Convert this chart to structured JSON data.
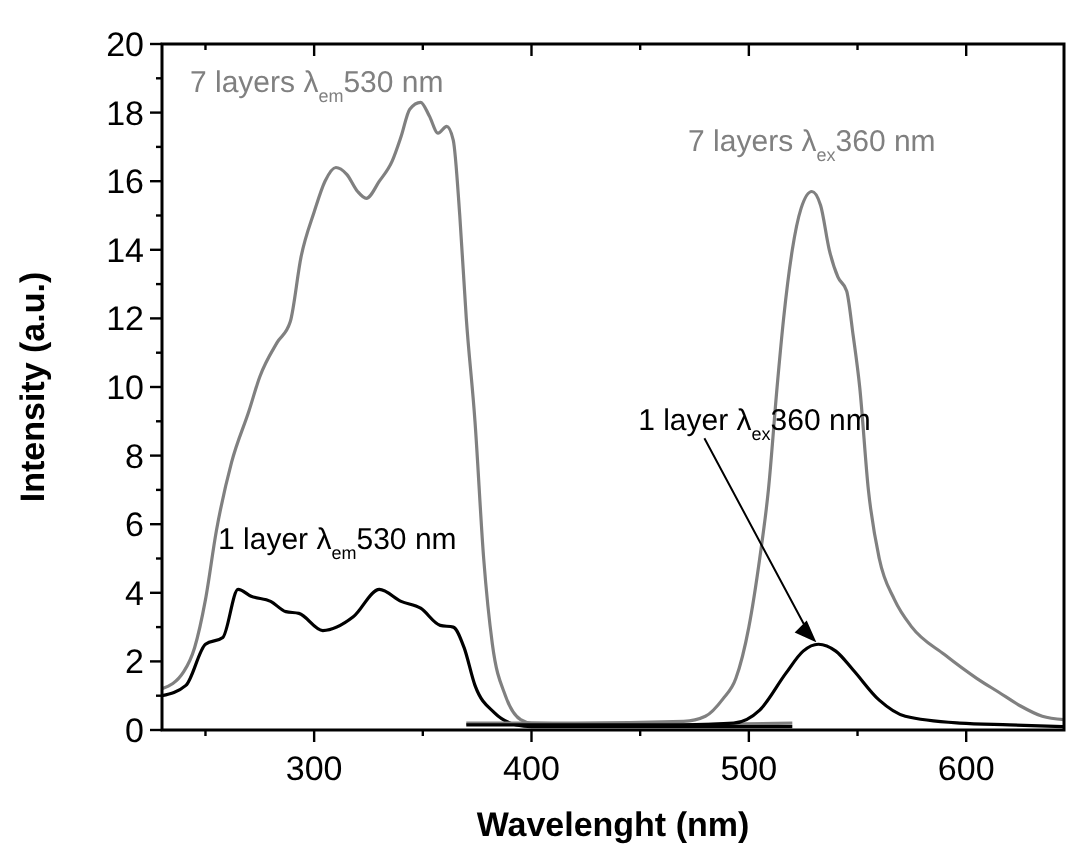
{
  "chart_data": {
    "type": "line",
    "xlabel": "Wavelenght (nm)",
    "ylabel": "Intensity (a.u.)",
    "xlim": [
      230,
      645
    ],
    "ylim": [
      0,
      20
    ],
    "xticks": [
      {
        "value": 250,
        "label": null
      },
      300,
      {
        "value": 350,
        "label": null
      },
      400,
      {
        "value": 450,
        "label": null
      },
      500,
      {
        "value": 550,
        "label": null
      },
      600
    ],
    "yticks": [
      0,
      {
        "value": 1,
        "label": null
      },
      2,
      {
        "value": 3,
        "label": null
      },
      4,
      {
        "value": 5,
        "label": null
      },
      6,
      {
        "value": 7,
        "label": null
      },
      8,
      {
        "value": 9,
        "label": null
      },
      10,
      {
        "value": 11,
        "label": null
      },
      12,
      {
        "value": 13,
        "label": null
      },
      14,
      {
        "value": 15,
        "label": null
      },
      16,
      {
        "value": 17,
        "label": null
      },
      18,
      {
        "value": 19,
        "label": null
      },
      20
    ],
    "annotations": [
      {
        "text": "7 layers λ$_{em}$530 nm",
        "x": 349,
        "y": 18.3
      },
      {
        "text": "1 layer λ$_{em}$530 nm",
        "x": 265,
        "y": 4.1
      },
      {
        "text": "7 layers λ$_{ex}$360 nm",
        "x": 529,
        "y": 15.7
      },
      {
        "text": "1 layer λ$_{ex}$360 nm",
        "x": 532,
        "y": 2.5
      }
    ],
    "grid": false,
    "marker": "none",
    "line_style": "solid",
    "series": [
      {
        "color": "#808080",
        "x": [
          230,
          240,
          245,
          250,
          255,
          262,
          270,
          275,
          283,
          289,
          294,
          300,
          305,
          310,
          315,
          320,
          324,
          330,
          336,
          340,
          344,
          349,
          353,
          357,
          361,
          364,
          367,
          370,
          374,
          378,
          382,
          388,
          395,
          400,
          450,
          520
        ],
        "values": [
          1.2,
          1.7,
          2.4,
          3.8,
          5.8,
          7.8,
          9.3,
          10.3,
          11.3,
          11.9,
          13.8,
          15.1,
          16.0,
          16.4,
          16.2,
          15.7,
          15.5,
          16.0,
          16.6,
          17.3,
          18.1,
          18.3,
          17.9,
          17.4,
          17.6,
          17.2,
          15,
          12,
          9,
          5,
          2.5,
          1,
          0.3,
          0.2,
          0.15,
          0.2
        ]
      },
      {
        "color": "#000000",
        "x": [
          230,
          241,
          250,
          258,
          265,
          271,
          280,
          287,
          293,
          304,
          318,
          330,
          340,
          349,
          358,
          364,
          369,
          374,
          383,
          393,
          400,
          450,
          520
        ],
        "values": [
          1.0,
          1.3,
          2.5,
          2.7,
          4.1,
          3.9,
          3.75,
          3.45,
          3.4,
          2.9,
          3.3,
          4.1,
          3.75,
          3.55,
          3.05,
          3.0,
          2.4,
          1.3,
          0.5,
          0.15,
          0.1,
          0.1,
          0.1
        ]
      },
      {
        "color": "#808080",
        "x": [
          370,
          420,
          470,
          480,
          488,
          494,
          500,
          505,
          509,
          513,
          516,
          520,
          524,
          529,
          533,
          537,
          541,
          545,
          548,
          551,
          555,
          560,
          567,
          575,
          590,
          605,
          615,
          625,
          635,
          645
        ],
        "values": [
          0.2,
          0.2,
          0.25,
          0.4,
          0.9,
          1.5,
          3,
          5,
          7,
          10,
          12,
          14,
          15.2,
          15.7,
          15.3,
          14,
          13.2,
          12.8,
          11.5,
          10,
          7,
          5,
          3.8,
          3,
          2.2,
          1.5,
          1.1,
          0.7,
          0.4,
          0.3
        ]
      },
      {
        "color": "#000000",
        "x": [
          370,
          420,
          470,
          493,
          505,
          517,
          525,
          532,
          540,
          548,
          560,
          572,
          597,
          620,
          645
        ],
        "values": [
          0.15,
          0.15,
          0.15,
          0.2,
          0.58,
          1.65,
          2.3,
          2.5,
          2.3,
          1.75,
          0.87,
          0.4,
          0.2,
          0.15,
          0.1
        ]
      }
    ]
  }
}
